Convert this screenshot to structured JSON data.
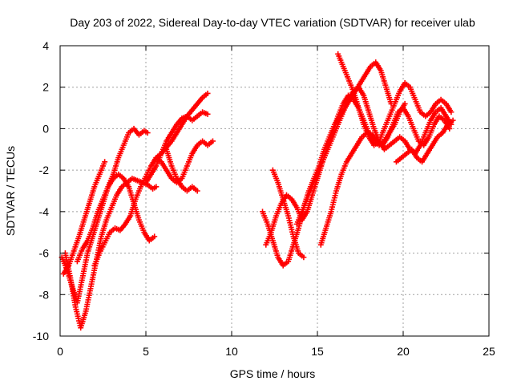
{
  "chart_data": {
    "type": "scatter",
    "title": "Day 203 of 2022, Sidereal Day-to-day VTEC variation (SDTVAR) for receiver ulab",
    "xlabel": "GPS time / hours",
    "ylabel": "SDTVAR / TECUs",
    "xlim": [
      0,
      25
    ],
    "ylim": [
      -10,
      4
    ],
    "xticks": [
      0,
      5,
      10,
      15,
      20,
      25
    ],
    "xtick_labels": [
      "0",
      "5",
      "10",
      "15",
      "20",
      "25"
    ],
    "yticks": [
      -10,
      -8,
      -6,
      -4,
      -2,
      0,
      2,
      4
    ],
    "ytick_labels": [
      "-10",
      "-8",
      "-6",
      "-4",
      "-2",
      "0",
      "2",
      "4"
    ],
    "grid": true,
    "marker": "+",
    "marker_color": "#ff0000",
    "series": [
      {
        "x": [
          0.1,
          0.4,
          0.7,
          1.0,
          1.3,
          1.6,
          1.9,
          2.2,
          2.5,
          2.8,
          3.1,
          3.4,
          3.7,
          4.0,
          4.3,
          4.6,
          4.9,
          5.1
        ],
        "y": [
          -6.2,
          -6.8,
          -7.6,
          -8.4,
          -7.2,
          -6.0,
          -5.2,
          -4.4,
          -3.6,
          -2.8,
          -2.2,
          -1.4,
          -0.8,
          -0.2,
          0.0,
          -0.3,
          -0.1,
          -0.2
        ]
      },
      {
        "x": [
          0.3,
          0.6,
          0.9,
          1.2,
          1.5,
          1.8,
          2.1,
          2.4,
          2.7,
          3.0,
          3.3,
          3.6,
          3.9,
          4.2,
          4.5,
          4.8,
          5.1,
          5.4,
          5.6
        ],
        "y": [
          -6.0,
          -7.2,
          -8.6,
          -9.6,
          -8.8,
          -7.6,
          -6.4,
          -5.2,
          -4.4,
          -3.8,
          -3.2,
          -2.8,
          -2.6,
          -2.4,
          -2.5,
          -2.6,
          -2.7,
          -2.9,
          -2.8
        ]
      },
      {
        "x": [
          0.2,
          0.5,
          0.8,
          1.1,
          1.4,
          1.7,
          2.0,
          2.3,
          2.6
        ],
        "y": [
          -7.0,
          -6.6,
          -5.9,
          -5.2,
          -4.4,
          -3.6,
          -2.8,
          -2.2,
          -1.6
        ]
      },
      {
        "x": [
          1.0,
          1.3,
          1.6,
          1.9,
          2.2,
          2.5,
          2.8,
          3.1,
          3.4,
          3.7,
          4.0,
          4.3,
          4.6,
          4.9,
          5.2,
          5.5
        ],
        "y": [
          -6.4,
          -5.8,
          -5.4,
          -4.8,
          -4.0,
          -3.4,
          -2.8,
          -2.4,
          -2.2,
          -2.4,
          -2.8,
          -3.6,
          -4.4,
          -5.0,
          -5.4,
          -5.2
        ]
      },
      {
        "x": [
          2.0,
          2.3,
          2.6,
          2.9,
          3.2,
          3.5,
          3.8,
          4.1,
          4.4,
          4.7,
          5.0,
          5.3,
          5.6,
          5.9,
          6.2,
          6.5,
          6.8,
          7.1,
          7.4,
          7.7,
          8.0,
          8.3,
          8.6
        ],
        "y": [
          -6.6,
          -6.0,
          -5.5,
          -5.0,
          -4.8,
          -4.9,
          -4.6,
          -4.2,
          -3.4,
          -2.8,
          -2.3,
          -1.8,
          -1.4,
          -1.2,
          -0.9,
          -0.6,
          -0.2,
          0.2,
          0.6,
          0.9,
          1.2,
          1.5,
          1.7
        ]
      },
      {
        "x": [
          5.0,
          5.3,
          5.6,
          5.9,
          6.2,
          6.5,
          6.8,
          7.1,
          7.4,
          7.7,
          8.0,
          8.3,
          8.6
        ],
        "y": [
          -2.6,
          -2.2,
          -1.8,
          -1.2,
          -0.6,
          -0.2,
          0.2,
          0.5,
          0.6,
          0.4,
          0.6,
          0.8,
          0.7
        ]
      },
      {
        "x": [
          5.6,
          5.9,
          6.2,
          6.5,
          6.8,
          7.1,
          7.4,
          7.7,
          8.0,
          8.3,
          8.6,
          8.9
        ],
        "y": [
          -1.4,
          -1.6,
          -2.0,
          -2.4,
          -2.6,
          -2.4,
          -1.8,
          -1.2,
          -0.8,
          -0.6,
          -0.8,
          -0.6
        ]
      },
      {
        "x": [
          6.2,
          6.5,
          6.8,
          7.1,
          7.4,
          7.7,
          8.0
        ],
        "y": [
          -1.0,
          -1.8,
          -2.4,
          -2.8,
          -3.0,
          -2.8,
          -3.0
        ]
      },
      {
        "x": [
          11.8,
          12.1,
          12.4,
          12.7,
          13.0,
          13.3,
          13.6,
          13.9,
          14.2,
          14.5,
          14.8,
          15.1,
          15.4,
          15.7,
          16.0,
          16.3,
          16.6,
          16.9,
          17.2,
          17.5,
          17.8,
          18.1,
          18.4,
          18.7,
          19.0,
          19.3
        ],
        "y": [
          -4.0,
          -4.6,
          -5.4,
          -6.2,
          -6.6,
          -6.4,
          -5.6,
          -4.8,
          -3.8,
          -3.0,
          -2.4,
          -1.8,
          -1.0,
          -0.4,
          0.2,
          0.6,
          1.0,
          1.4,
          1.8,
          2.2,
          2.6,
          3.0,
          3.2,
          2.8,
          2.0,
          1.2
        ]
      },
      {
        "x": [
          12.0,
          12.3,
          12.6,
          12.9,
          13.2,
          13.5,
          13.8,
          14.1,
          14.4,
          14.7,
          15.0,
          15.3,
          15.6,
          15.9,
          16.2,
          16.5,
          16.8,
          17.1,
          17.4,
          17.7,
          18.0,
          18.3,
          18.6,
          18.9,
          19.2,
          19.5,
          19.8,
          20.1
        ],
        "y": [
          -5.6,
          -5.0,
          -4.2,
          -3.6,
          -3.2,
          -3.4,
          -3.8,
          -4.4,
          -4.0,
          -3.2,
          -2.4,
          -1.6,
          -0.8,
          -0.2,
          0.6,
          1.2,
          1.6,
          1.4,
          1.0,
          0.4,
          -0.2,
          -0.6,
          -0.8,
          -0.6,
          -0.2,
          0.2,
          0.8,
          1.2
        ]
      },
      {
        "x": [
          12.4,
          12.7,
          13.0,
          13.3,
          13.6,
          13.9,
          14.2
        ],
        "y": [
          -2.0,
          -2.6,
          -3.4,
          -4.2,
          -5.2,
          -6.0,
          -6.2
        ]
      },
      {
        "x": [
          13.8,
          14.1,
          14.4,
          14.7,
          15.0,
          15.3,
          15.6,
          15.9,
          16.2,
          16.5,
          16.8,
          17.1,
          17.4,
          17.7,
          18.0,
          18.3,
          18.6,
          18.9,
          19.2,
          19.5,
          19.8,
          20.1,
          20.4,
          20.7,
          21.0,
          21.3,
          21.6,
          21.9,
          22.2,
          22.5,
          22.8
        ],
        "y": [
          -4.6,
          -4.0,
          -3.4,
          -2.8,
          -2.2,
          -1.6,
          -1.0,
          -0.4,
          0.2,
          0.8,
          1.4,
          1.8,
          2.0,
          1.6,
          0.8,
          0.0,
          -0.6,
          -1.0,
          -0.8,
          -0.6,
          -0.4,
          -0.6,
          -1.0,
          -1.2,
          -0.8,
          -0.2,
          0.4,
          0.8,
          1.0,
          0.6,
          0.2
        ]
      },
      {
        "x": [
          15.2,
          15.5,
          15.8,
          16.1,
          16.4,
          16.7,
          17.0,
          17.3,
          17.6,
          17.9,
          18.2,
          18.5,
          18.8,
          19.1,
          19.4,
          19.7,
          20.0,
          20.3,
          20.6,
          20.9,
          21.2,
          21.5,
          21.8,
          22.1,
          22.4,
          22.7
        ],
        "y": [
          -5.6,
          -4.8,
          -4.0,
          -3.0,
          -2.2,
          -1.6,
          -1.2,
          -0.8,
          -0.4,
          -0.2,
          -0.3,
          -0.6,
          -0.8,
          -0.4,
          0.2,
          0.8,
          1.0,
          0.6,
          0.0,
          -0.6,
          -0.8,
          -0.4,
          0.2,
          0.6,
          0.4,
          0.0
        ]
      },
      {
        "x": [
          16.2,
          16.5,
          16.8,
          17.1,
          17.4,
          17.7,
          18.0,
          18.3,
          18.6,
          18.9,
          19.2,
          19.5,
          19.8,
          20.1,
          20.4,
          20.7,
          21.0,
          21.3,
          21.6,
          21.9,
          22.2,
          22.5,
          22.8
        ],
        "y": [
          3.6,
          3.0,
          2.4,
          1.8,
          1.0,
          0.2,
          -0.4,
          -0.8,
          -0.6,
          0.0,
          0.6,
          1.2,
          1.8,
          2.2,
          2.0,
          1.4,
          0.8,
          0.6,
          0.8,
          1.2,
          1.4,
          1.2,
          0.8
        ]
      },
      {
        "x": [
          19.6,
          19.9,
          20.2,
          20.5,
          20.8,
          21.1,
          21.4,
          21.7,
          22.0,
          22.3,
          22.6,
          22.9
        ],
        "y": [
          -1.6,
          -1.4,
          -1.2,
          -1.0,
          -1.4,
          -1.6,
          -1.2,
          -0.8,
          -0.4,
          -0.2,
          0.2,
          0.4
        ]
      }
    ]
  }
}
